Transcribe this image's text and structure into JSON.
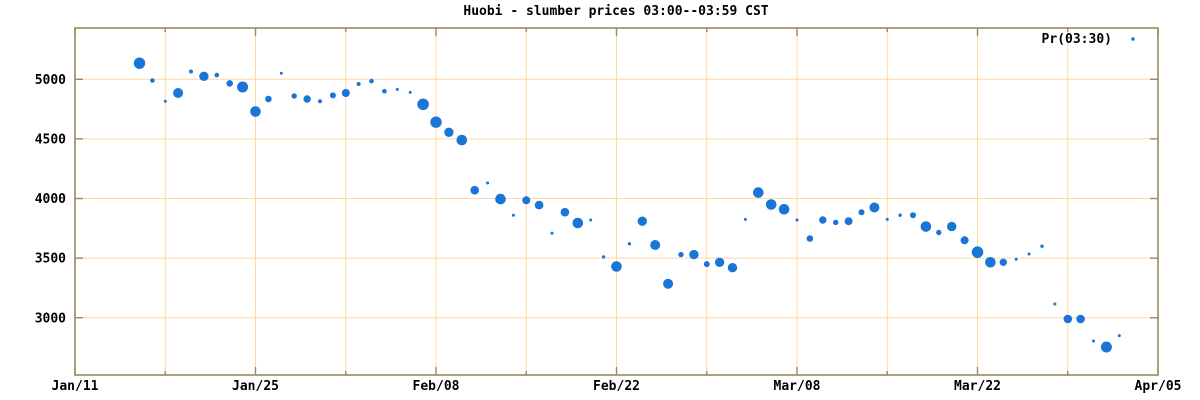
{
  "title": "Huobi - slumber prices 03:00--03:59 CST",
  "legend": {
    "label": "Pr(03:30)",
    "position": "top-right-inside"
  },
  "chart_data": {
    "type": "scatter",
    "title": "Huobi - slumber prices 03:00--03:59 CST",
    "series_name": "Pr(03:30)",
    "xlabel": "",
    "ylabel": "",
    "x_range_days": [
      0,
      84
    ],
    "x_major_ticks": [
      {
        "day": 0,
        "label": "Jan/11"
      },
      {
        "day": 14,
        "label": "Jan/25"
      },
      {
        "day": 28,
        "label": "Feb/08"
      },
      {
        "day": 42,
        "label": "Feb/22"
      },
      {
        "day": 56,
        "label": "Mar/08"
      },
      {
        "day": 70,
        "label": "Mar/22"
      },
      {
        "day": 84,
        "label": "Apr/05"
      }
    ],
    "x_minor_tick_days": [
      7,
      21,
      35,
      49,
      63,
      77
    ],
    "y_ticks": [
      3000,
      3500,
      4000,
      4500,
      5000
    ],
    "ylim": [
      2520,
      5430
    ],
    "grid": true,
    "grid_interval_x_days": 7,
    "legend_position": "top-right",
    "colors": {
      "point": "#1975d6",
      "grid": "#ffd9a3",
      "border": "#998a5e",
      "text": "#000000",
      "background": "#ffffff"
    },
    "points": [
      {
        "date": "Jan/16",
        "day": 5,
        "price": 5135,
        "size": 5.7
      },
      {
        "date": "Jan/17",
        "day": 6,
        "price": 4990,
        "size": 2.3
      },
      {
        "date": "Jan/18",
        "day": 7,
        "price": 4815,
        "size": 1.5
      },
      {
        "date": "Jan/19",
        "day": 8,
        "price": 4885,
        "size": 5.0
      },
      {
        "date": "Jan/20",
        "day": 9,
        "price": 5065,
        "size": 2.0
      },
      {
        "date": "Jan/21",
        "day": 10,
        "price": 5025,
        "size": 4.7
      },
      {
        "date": "Jan/22",
        "day": 11,
        "price": 5035,
        "size": 2.3
      },
      {
        "date": "Jan/23",
        "day": 12,
        "price": 4965,
        "size": 3.3
      },
      {
        "date": "Jan/24",
        "day": 13,
        "price": 4935,
        "size": 5.5
      },
      {
        "date": "Jan/25",
        "day": 14,
        "price": 4730,
        "size": 5.3
      },
      {
        "date": "Jan/26",
        "day": 15,
        "price": 4835,
        "size": 3.3
      },
      {
        "date": "Jan/27",
        "day": 16,
        "price": 5050,
        "size": 1.5
      },
      {
        "date": "Jan/28",
        "day": 17,
        "price": 4860,
        "size": 2.7
      },
      {
        "date": "Jan/29",
        "day": 18,
        "price": 4835,
        "size": 3.7
      },
      {
        "date": "Jan/30",
        "day": 19,
        "price": 4815,
        "size": 2.0
      },
      {
        "date": "Jan/31",
        "day": 20,
        "price": 4865,
        "size": 3.0
      },
      {
        "date": "Feb/01",
        "day": 21,
        "price": 4885,
        "size": 4.0
      },
      {
        "date": "Feb/02",
        "day": 22,
        "price": 4960,
        "size": 2.0
      },
      {
        "date": "Feb/03",
        "day": 23,
        "price": 4985,
        "size": 2.3
      },
      {
        "date": "Feb/04",
        "day": 24,
        "price": 4900,
        "size": 2.3
      },
      {
        "date": "Feb/05",
        "day": 25,
        "price": 4915,
        "size": 1.5
      },
      {
        "date": "Feb/06",
        "day": 26,
        "price": 4890,
        "size": 1.5
      },
      {
        "date": "Feb/07",
        "day": 27,
        "price": 4790,
        "size": 5.8
      },
      {
        "date": "Feb/08",
        "day": 28,
        "price": 4640,
        "size": 5.7
      },
      {
        "date": "Feb/09",
        "day": 29,
        "price": 4555,
        "size": 4.7
      },
      {
        "date": "Feb/10",
        "day": 30,
        "price": 4490,
        "size": 5.3
      },
      {
        "date": "Feb/11",
        "day": 31,
        "price": 4070,
        "size": 4.3
      },
      {
        "date": "Feb/12",
        "day": 32,
        "price": 4130,
        "size": 1.5
      },
      {
        "date": "Feb/13",
        "day": 33,
        "price": 3995,
        "size": 5.3
      },
      {
        "date": "Feb/14",
        "day": 34,
        "price": 3860,
        "size": 1.5
      },
      {
        "date": "Feb/15",
        "day": 35,
        "price": 3985,
        "size": 4.0
      },
      {
        "date": "Feb/16",
        "day": 36,
        "price": 3945,
        "size": 4.3
      },
      {
        "date": "Feb/17",
        "day": 37,
        "price": 3710,
        "size": 1.5
      },
      {
        "date": "Feb/18",
        "day": 38,
        "price": 3885,
        "size": 4.3
      },
      {
        "date": "Feb/19",
        "day": 39,
        "price": 3795,
        "size": 5.3
      },
      {
        "date": "Feb/20",
        "day": 40,
        "price": 3820,
        "size": 1.5
      },
      {
        "date": "Feb/21",
        "day": 41,
        "price": 3510,
        "size": 1.7
      },
      {
        "date": "Feb/22",
        "day": 42,
        "price": 3430,
        "size": 5.3
      },
      {
        "date": "Feb/23",
        "day": 43,
        "price": 3620,
        "size": 1.7
      },
      {
        "date": "Feb/24",
        "day": 44,
        "price": 3810,
        "size": 4.7
      },
      {
        "date": "Feb/25",
        "day": 45,
        "price": 3610,
        "size": 5.0
      },
      {
        "date": "Feb/26",
        "day": 46,
        "price": 3285,
        "size": 5.0
      },
      {
        "date": "Feb/27",
        "day": 47,
        "price": 3530,
        "size": 2.7
      },
      {
        "date": "Feb/28",
        "day": 48,
        "price": 3530,
        "size": 4.7
      },
      {
        "date": "Mar/01",
        "day": 49,
        "price": 3450,
        "size": 3.0
      },
      {
        "date": "Mar/02",
        "day": 50,
        "price": 3465,
        "size": 4.7
      },
      {
        "date": "Mar/03",
        "day": 51,
        "price": 3420,
        "size": 4.7
      },
      {
        "date": "Mar/04",
        "day": 52,
        "price": 3825,
        "size": 1.5
      },
      {
        "date": "Mar/05",
        "day": 53,
        "price": 4050,
        "size": 5.3
      },
      {
        "date": "Mar/06",
        "day": 54,
        "price": 3950,
        "size": 5.3
      },
      {
        "date": "Mar/07",
        "day": 55,
        "price": 3910,
        "size": 5.3
      },
      {
        "date": "Mar/08",
        "day": 56,
        "price": 3820,
        "size": 1.5
      },
      {
        "date": "Mar/09",
        "day": 57,
        "price": 3665,
        "size": 3.3
      },
      {
        "date": "Mar/10",
        "day": 58,
        "price": 3820,
        "size": 3.7
      },
      {
        "date": "Mar/11",
        "day": 59,
        "price": 3800,
        "size": 2.7
      },
      {
        "date": "Mar/12",
        "day": 60,
        "price": 3810,
        "size": 4.0
      },
      {
        "date": "Mar/13",
        "day": 61,
        "price": 3885,
        "size": 3.0
      },
      {
        "date": "Mar/14",
        "day": 62,
        "price": 3925,
        "size": 5.0
      },
      {
        "date": "Mar/15",
        "day": 63,
        "price": 3825,
        "size": 1.5
      },
      {
        "date": "Mar/16",
        "day": 64,
        "price": 3860,
        "size": 1.7
      },
      {
        "date": "Mar/17",
        "day": 65,
        "price": 3860,
        "size": 3.0
      },
      {
        "date": "Mar/18",
        "day": 66,
        "price": 3765,
        "size": 5.3
      },
      {
        "date": "Mar/19",
        "day": 67,
        "price": 3715,
        "size": 2.7
      },
      {
        "date": "Mar/20",
        "day": 68,
        "price": 3765,
        "size": 4.7
      },
      {
        "date": "Mar/21",
        "day": 69,
        "price": 3650,
        "size": 4.0
      },
      {
        "date": "Mar/22",
        "day": 70,
        "price": 3550,
        "size": 5.8
      },
      {
        "date": "Mar/23",
        "day": 71,
        "price": 3465,
        "size": 5.3
      },
      {
        "date": "Mar/24",
        "day": 72,
        "price": 3465,
        "size": 3.7
      },
      {
        "date": "Mar/25",
        "day": 73,
        "price": 3490,
        "size": 1.5
      },
      {
        "date": "Mar/26",
        "day": 74,
        "price": 3535,
        "size": 1.5
      },
      {
        "date": "Mar/27",
        "day": 75,
        "price": 3600,
        "size": 1.7
      },
      {
        "date": "Mar/28",
        "day": 76,
        "price": 3115,
        "size": 1.5
      },
      {
        "date": "Mar/29",
        "day": 77,
        "price": 2990,
        "size": 4.3
      },
      {
        "date": "Mar/30",
        "day": 78,
        "price": 2990,
        "size": 4.3
      },
      {
        "date": "Mar/31",
        "day": 79,
        "price": 2805,
        "size": 1.5
      },
      {
        "date": "Apr/01",
        "day": 80,
        "price": 2755,
        "size": 5.5
      },
      {
        "date": "Apr/02",
        "day": 81,
        "price": 2850,
        "size": 1.5
      }
    ]
  }
}
